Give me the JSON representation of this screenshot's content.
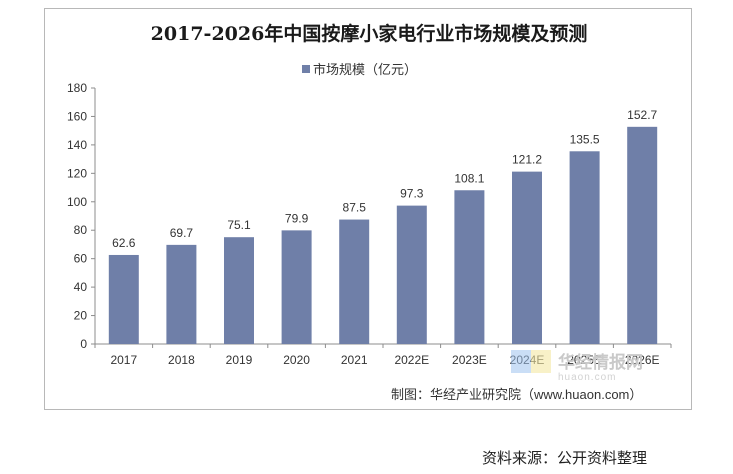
{
  "chart_data": {
    "type": "bar",
    "title": "2017-2026年中国按摩小家电行业市场规模及预测",
    "categories": [
      "2017",
      "2018",
      "2019",
      "2020",
      "2021",
      "2022E",
      "2023E",
      "2024E",
      "2025E",
      "2026E"
    ],
    "series": [
      {
        "name": "市场规模（亿元）",
        "values": [
          62.6,
          69.7,
          75.1,
          79.9,
          87.5,
          97.3,
          108.1,
          121.2,
          135.5,
          152.7
        ]
      }
    ],
    "data_labels": [
      "62.6",
      "69.7",
      "75.1",
      "79.9",
      "87.5",
      "97.3",
      "108.1",
      "121.2",
      "135.5",
      "152.7"
    ],
    "ylim": [
      0,
      180
    ],
    "yticks": [
      "0",
      "20",
      "40",
      "60",
      "80",
      "100",
      "120",
      "140",
      "160",
      "180"
    ],
    "bar_color": "#6f7fa8",
    "legend_position": "top-center",
    "grid": false
  },
  "credit": "制图：华经产业研究院（www.huaon.com）",
  "watermark": {
    "text": "华经情报网",
    "sub": "huaon.com"
  },
  "source_note": "资料来源：公开资料整理"
}
